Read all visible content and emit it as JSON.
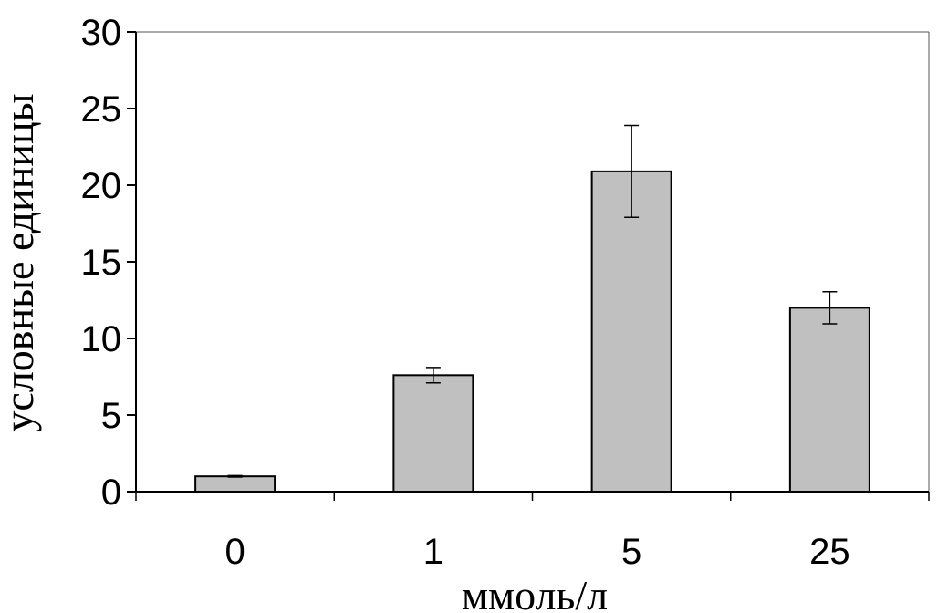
{
  "chart_data": {
    "type": "bar",
    "categories": [
      "0",
      "1",
      "5",
      "25"
    ],
    "values": [
      1.0,
      7.6,
      20.9,
      12.0
    ],
    "errors": [
      0.05,
      0.5,
      3.0,
      1.05
    ],
    "xlabel": "ммоль/л",
    "ylabel": "условные единицы",
    "ylim": [
      0,
      30
    ],
    "yticks": [
      0,
      5,
      10,
      15,
      20,
      25,
      30
    ],
    "ytick_labels": [
      "0",
      "5",
      "10",
      "15",
      "20",
      "25",
      "30"
    ],
    "grid": false,
    "legend": false,
    "colors": {
      "bar_fill": "#c0c0c0",
      "bar_stroke": "#000000",
      "axis": "#000000",
      "background": "#ffffff"
    }
  }
}
